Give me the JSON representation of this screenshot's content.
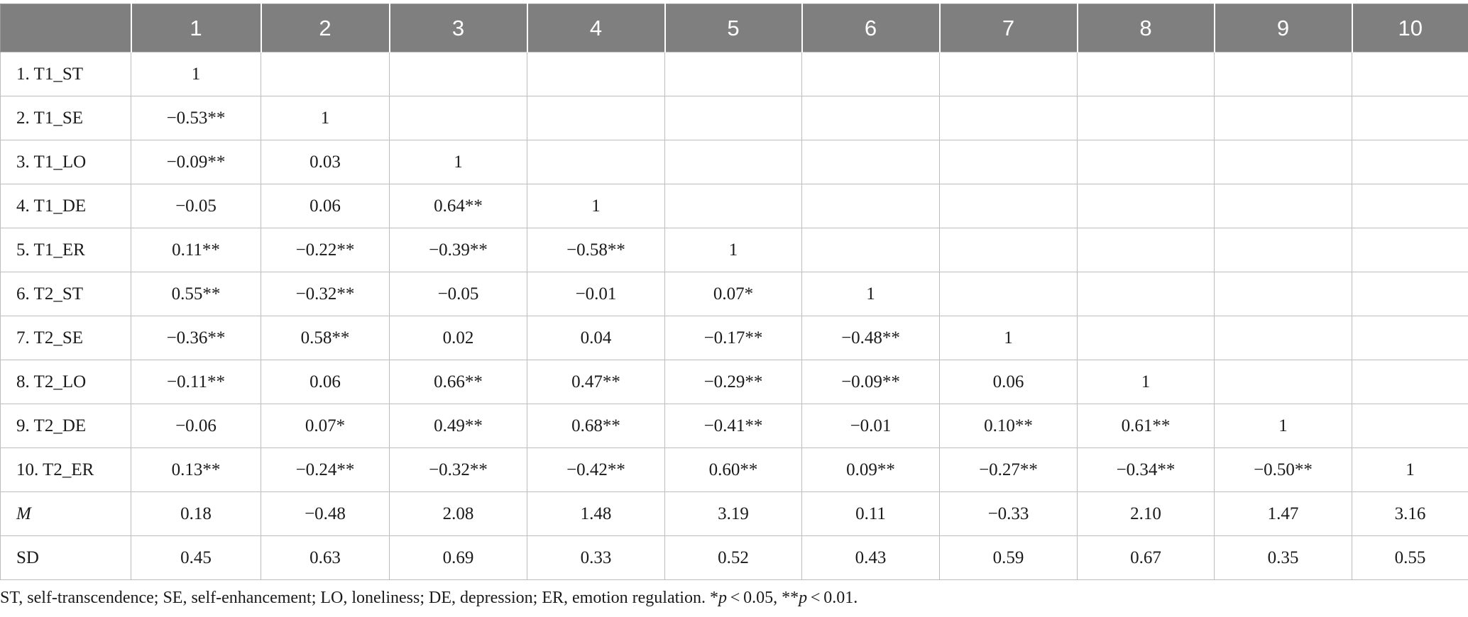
{
  "table": {
    "columns": [
      "",
      "1",
      "2",
      "3",
      "4",
      "5",
      "6",
      "7",
      "8",
      "9",
      "10"
    ],
    "rows": [
      {
        "label": "1. T1_ST",
        "italic": false,
        "cells": [
          "1",
          "",
          "",
          "",
          "",
          "",
          "",
          "",
          "",
          ""
        ]
      },
      {
        "label": "2. T1_SE",
        "italic": false,
        "cells": [
          "−0.53**",
          "1",
          "",
          "",
          "",
          "",
          "",
          "",
          "",
          ""
        ]
      },
      {
        "label": "3. T1_LO",
        "italic": false,
        "cells": [
          "−0.09**",
          "0.03",
          "1",
          "",
          "",
          "",
          "",
          "",
          "",
          ""
        ]
      },
      {
        "label": "4. T1_DE",
        "italic": false,
        "cells": [
          "−0.05",
          "0.06",
          "0.64**",
          "1",
          "",
          "",
          "",
          "",
          "",
          ""
        ]
      },
      {
        "label": "5. T1_ER",
        "italic": false,
        "cells": [
          "0.11**",
          "−0.22**",
          "−0.39**",
          "−0.58**",
          "1",
          "",
          "",
          "",
          "",
          ""
        ]
      },
      {
        "label": "6. T2_ST",
        "italic": false,
        "cells": [
          "0.55**",
          "−0.32**",
          "−0.05",
          "−0.01",
          "0.07*",
          "1",
          "",
          "",
          "",
          ""
        ]
      },
      {
        "label": "7. T2_SE",
        "italic": false,
        "cells": [
          "−0.36**",
          "0.58**",
          "0.02",
          "0.04",
          "−0.17**",
          "−0.48**",
          "1",
          "",
          "",
          ""
        ]
      },
      {
        "label": "8. T2_LO",
        "italic": false,
        "cells": [
          "−0.11**",
          "0.06",
          "0.66**",
          "0.47**",
          "−0.29**",
          "−0.09**",
          "0.06",
          "1",
          "",
          ""
        ]
      },
      {
        "label": "9. T2_DE",
        "italic": false,
        "cells": [
          "−0.06",
          "0.07*",
          "0.49**",
          "0.68**",
          "−0.41**",
          "−0.01",
          "0.10**",
          "0.61**",
          "1",
          ""
        ]
      },
      {
        "label": "10. T2_ER",
        "italic": false,
        "cells": [
          "0.13**",
          "−0.24**",
          "−0.32**",
          "−0.42**",
          "0.60**",
          "0.09**",
          "−0.27**",
          "−0.34**",
          "−0.50**",
          "1"
        ]
      },
      {
        "label": "M",
        "italic": true,
        "cells": [
          "0.18",
          "−0.48",
          "2.08",
          "1.48",
          "3.19",
          "0.11",
          "−0.33",
          "2.10",
          "1.47",
          "3.16"
        ]
      },
      {
        "label": "SD",
        "italic": false,
        "cells": [
          "0.45",
          "0.63",
          "0.69",
          "0.33",
          "0.52",
          "0.43",
          "0.59",
          "0.67",
          "0.35",
          "0.55"
        ]
      }
    ]
  },
  "footnote": {
    "definitions": "ST, self-transcendence; SE, self-enhancement; LO, loneliness; DE, depression; ER, emotion regulation. ",
    "sig1_star": "*",
    "sig1_p": "p",
    "sig1_rest": " < 0.05, ",
    "sig2_star": "**",
    "sig2_p": "p",
    "sig2_rest": " < 0.01."
  }
}
